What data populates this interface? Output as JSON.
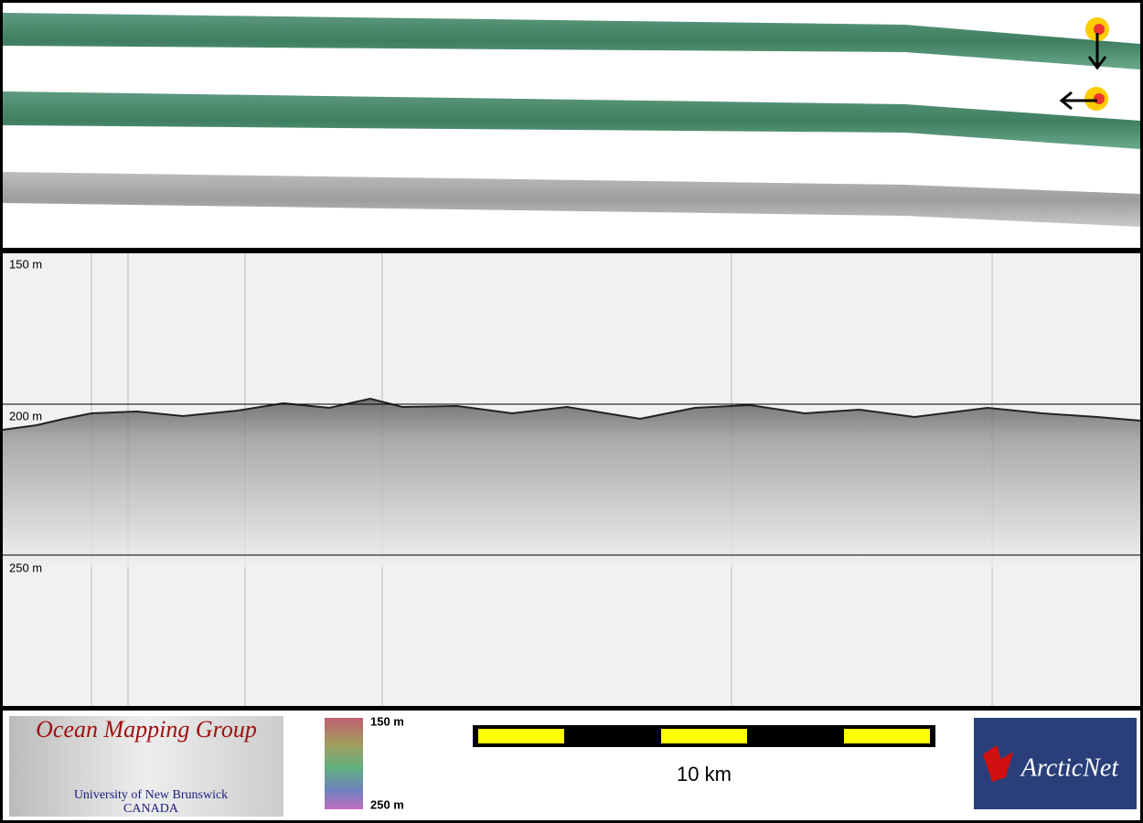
{
  "profile": {
    "depth_labels": [
      "150 m",
      "200 m",
      "250 m"
    ]
  },
  "footer": {
    "logo_title": "Ocean Mapping Group",
    "logo_university": "University of New Brunswick",
    "logo_country": "CANADA",
    "colorbar_top": "150 m",
    "colorbar_bottom": "250 m",
    "scale_label": "10 km",
    "partner": "ArcticNet"
  }
}
